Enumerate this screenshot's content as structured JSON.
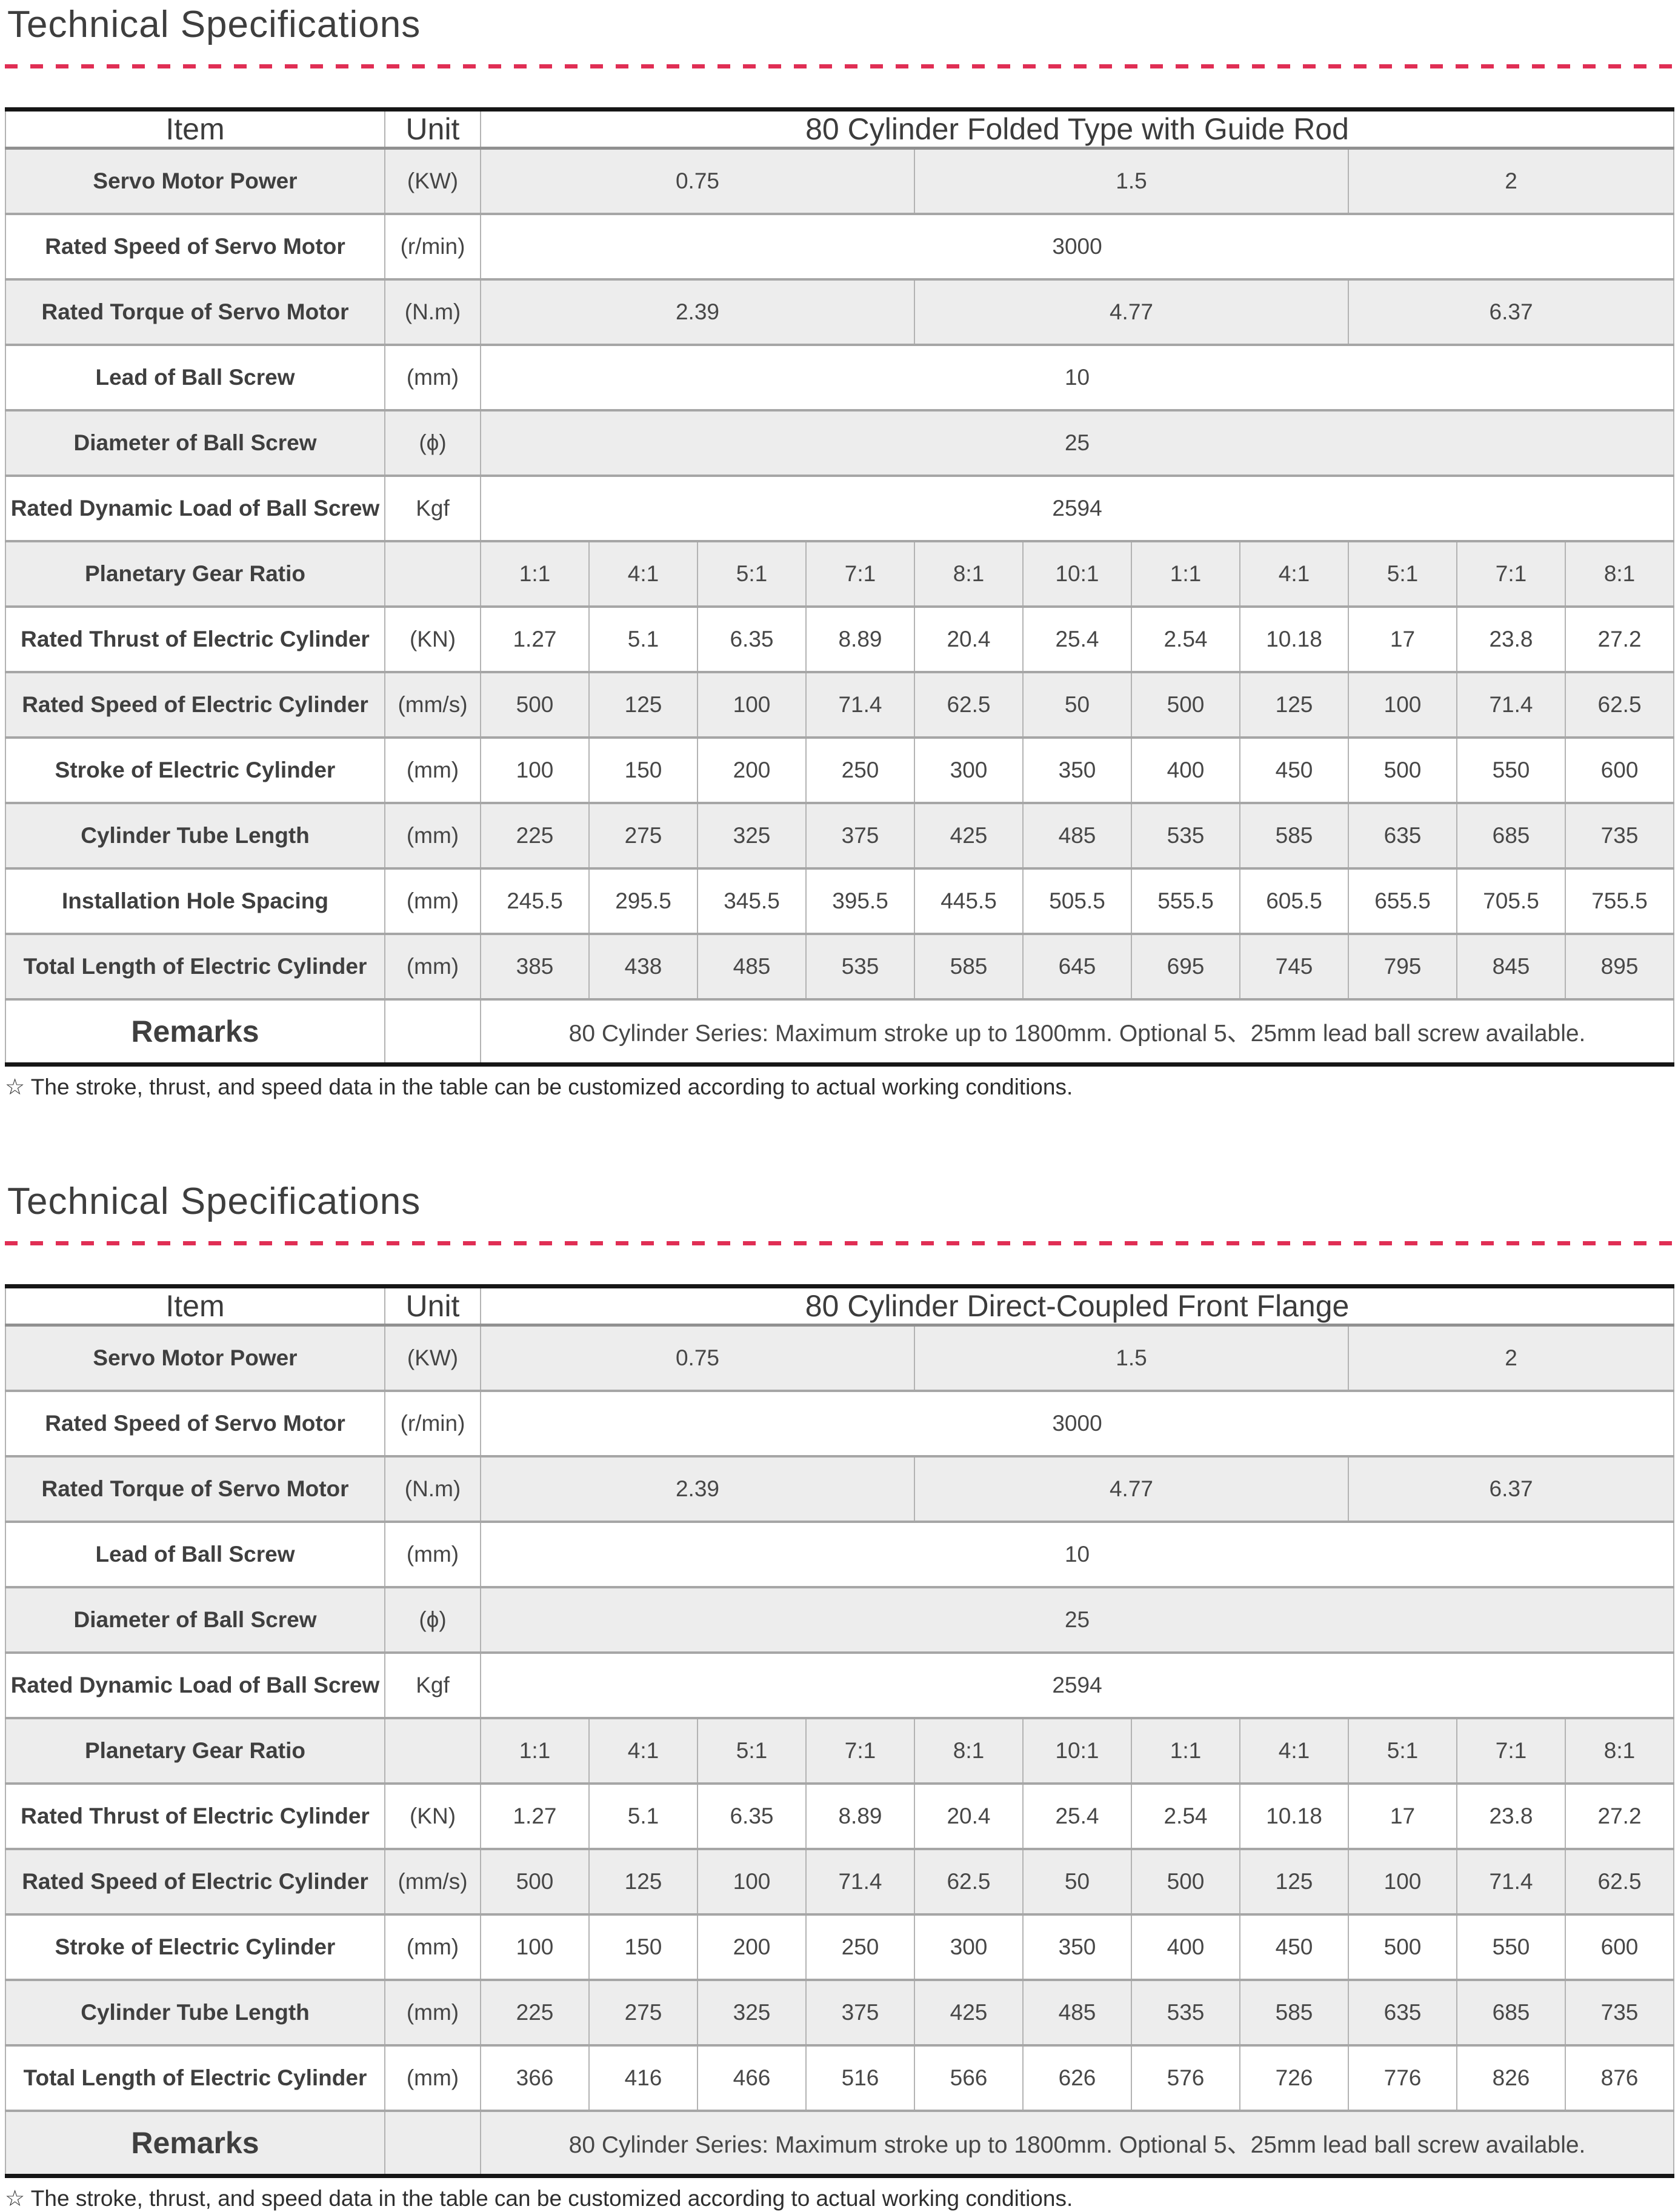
{
  "colors": {
    "dash_accent": "#e02e54",
    "row_shade": "#ededed",
    "table_frame": "#161616",
    "grid_line": "#a6a6a6"
  },
  "sections": [
    {
      "title": "Technical Specifications",
      "footnote": "☆ The stroke, thrust, and speed data in the table can be customized according to actual working conditions.",
      "table": {
        "header": {
          "item": "Item",
          "unit": "Unit",
          "span": "80 Cylinder Folded Type with Guide Rod"
        },
        "rows": [
          {
            "label": "Servo Motor Power",
            "unit": "(KW)",
            "shaded": true,
            "cells": [
              {
                "t": "0.75",
                "s": 4
              },
              {
                "t": "1.5",
                "s": 4
              },
              {
                "t": "2",
                "s": 3
              }
            ]
          },
          {
            "label": "Rated Speed of Servo Motor",
            "unit": "(r/min)",
            "shaded": false,
            "cells": [
              {
                "t": "3000",
                "s": 11
              }
            ]
          },
          {
            "label": "Rated Torque of Servo Motor",
            "unit": "(N.m)",
            "shaded": true,
            "cells": [
              {
                "t": "2.39",
                "s": 4
              },
              {
                "t": "4.77",
                "s": 4
              },
              {
                "t": "6.37",
                "s": 3
              }
            ]
          },
          {
            "label": "Lead of Ball Screw",
            "unit": "(mm)",
            "shaded": false,
            "cells": [
              {
                "t": "10",
                "s": 11
              }
            ]
          },
          {
            "label": "Diameter of Ball Screw",
            "unit": "(ϕ)",
            "shaded": true,
            "cells": [
              {
                "t": "25",
                "s": 11
              }
            ]
          },
          {
            "label": "Rated Dynamic Load of Ball Screw",
            "unit": "Kgf",
            "shaded": false,
            "cells": [
              {
                "t": "2594",
                "s": 11
              }
            ]
          },
          {
            "label": "Planetary Gear Ratio",
            "unit": "",
            "shaded": true,
            "cells": [
              {
                "t": "1:1",
                "s": 1
              },
              {
                "t": "4:1",
                "s": 1
              },
              {
                "t": "5:1",
                "s": 1
              },
              {
                "t": "7:1",
                "s": 1
              },
              {
                "t": "8:1",
                "s": 1
              },
              {
                "t": "10:1",
                "s": 1
              },
              {
                "t": "1:1",
                "s": 1
              },
              {
                "t": "4:1",
                "s": 1
              },
              {
                "t": "5:1",
                "s": 1
              },
              {
                "t": "7:1",
                "s": 1
              },
              {
                "t": "8:1",
                "s": 1
              }
            ]
          },
          {
            "label": "Rated Thrust of Electric Cylinder",
            "unit": "(KN)",
            "shaded": false,
            "cells": [
              {
                "t": "1.27",
                "s": 1
              },
              {
                "t": "5.1",
                "s": 1
              },
              {
                "t": "6.35",
                "s": 1
              },
              {
                "t": "8.89",
                "s": 1
              },
              {
                "t": "20.4",
                "s": 1
              },
              {
                "t": "25.4",
                "s": 1
              },
              {
                "t": "2.54",
                "s": 1
              },
              {
                "t": "10.18",
                "s": 1
              },
              {
                "t": "17",
                "s": 1
              },
              {
                "t": "23.8",
                "s": 1
              },
              {
                "t": "27.2",
                "s": 1
              }
            ]
          },
          {
            "label": "Rated Speed of Electric Cylinder",
            "unit": "(mm/s)",
            "shaded": true,
            "cells": [
              {
                "t": "500",
                "s": 1
              },
              {
                "t": "125",
                "s": 1
              },
              {
                "t": "100",
                "s": 1
              },
              {
                "t": "71.4",
                "s": 1
              },
              {
                "t": "62.5",
                "s": 1
              },
              {
                "t": "50",
                "s": 1
              },
              {
                "t": "500",
                "s": 1
              },
              {
                "t": "125",
                "s": 1
              },
              {
                "t": "100",
                "s": 1
              },
              {
                "t": "71.4",
                "s": 1
              },
              {
                "t": "62.5",
                "s": 1
              }
            ]
          },
          {
            "label": "Stroke of Electric Cylinder",
            "unit": "(mm)",
            "shaded": false,
            "cells": [
              {
                "t": "100",
                "s": 1
              },
              {
                "t": "150",
                "s": 1
              },
              {
                "t": "200",
                "s": 1
              },
              {
                "t": "250",
                "s": 1
              },
              {
                "t": "300",
                "s": 1
              },
              {
                "t": "350",
                "s": 1
              },
              {
                "t": "400",
                "s": 1
              },
              {
                "t": "450",
                "s": 1
              },
              {
                "t": "500",
                "s": 1
              },
              {
                "t": "550",
                "s": 1
              },
              {
                "t": "600",
                "s": 1
              }
            ]
          },
          {
            "label": "Cylinder Tube Length",
            "unit": "(mm)",
            "shaded": true,
            "cells": [
              {
                "t": "225",
                "s": 1
              },
              {
                "t": "275",
                "s": 1
              },
              {
                "t": "325",
                "s": 1
              },
              {
                "t": "375",
                "s": 1
              },
              {
                "t": "425",
                "s": 1
              },
              {
                "t": "485",
                "s": 1
              },
              {
                "t": "535",
                "s": 1
              },
              {
                "t": "585",
                "s": 1
              },
              {
                "t": "635",
                "s": 1
              },
              {
                "t": "685",
                "s": 1
              },
              {
                "t": "735",
                "s": 1
              }
            ]
          },
          {
            "label": "Installation Hole Spacing",
            "unit": "(mm)",
            "shaded": false,
            "cells": [
              {
                "t": "245.5",
                "s": 1
              },
              {
                "t": "295.5",
                "s": 1
              },
              {
                "t": "345.5",
                "s": 1
              },
              {
                "t": "395.5",
                "s": 1
              },
              {
                "t": "445.5",
                "s": 1
              },
              {
                "t": "505.5",
                "s": 1
              },
              {
                "t": "555.5",
                "s": 1
              },
              {
                "t": "605.5",
                "s": 1
              },
              {
                "t": "655.5",
                "s": 1
              },
              {
                "t": "705.5",
                "s": 1
              },
              {
                "t": "755.5",
                "s": 1
              }
            ]
          },
          {
            "label": "Total Length of Electric Cylinder",
            "unit": "(mm)",
            "shaded": true,
            "cells": [
              {
                "t": "385",
                "s": 1
              },
              {
                "t": "438",
                "s": 1
              },
              {
                "t": "485",
                "s": 1
              },
              {
                "t": "535",
                "s": 1
              },
              {
                "t": "585",
                "s": 1
              },
              {
                "t": "645",
                "s": 1
              },
              {
                "t": "695",
                "s": 1
              },
              {
                "t": "745",
                "s": 1
              },
              {
                "t": "795",
                "s": 1
              },
              {
                "t": "845",
                "s": 1
              },
              {
                "t": "895",
                "s": 1
              }
            ]
          },
          {
            "label": "Remarks",
            "unit": "",
            "shaded": false,
            "remarks": true,
            "cells": [
              {
                "t": "80 Cylinder Series: Maximum stroke up to 1800mm. Optional 5、25mm lead ball screw available.",
                "s": 11
              }
            ]
          }
        ]
      }
    },
    {
      "title": "Technical Specifications",
      "footnote": "☆ The stroke, thrust, and speed data in the table can be customized according to actual working conditions.",
      "table": {
        "header": {
          "item": "Item",
          "unit": "Unit",
          "span": "80  Cylinder Direct-Coupled Front Flange"
        },
        "rows": [
          {
            "label": "Servo Motor Power",
            "unit": "(KW)",
            "shaded": true,
            "cells": [
              {
                "t": "0.75",
                "s": 4
              },
              {
                "t": "1.5",
                "s": 4
              },
              {
                "t": "2",
                "s": 3
              }
            ]
          },
          {
            "label": "Rated Speed of Servo Motor",
            "unit": "(r/min)",
            "shaded": false,
            "cells": [
              {
                "t": "3000",
                "s": 11
              }
            ]
          },
          {
            "label": "Rated Torque of Servo Motor",
            "unit": "(N.m)",
            "shaded": true,
            "cells": [
              {
                "t": "2.39",
                "s": 4
              },
              {
                "t": "4.77",
                "s": 4
              },
              {
                "t": "6.37",
                "s": 3
              }
            ]
          },
          {
            "label": "Lead of Ball Screw",
            "unit": "(mm)",
            "shaded": false,
            "cells": [
              {
                "t": "10",
                "s": 11
              }
            ]
          },
          {
            "label": "Diameter of Ball Screw",
            "unit": "(ϕ)",
            "shaded": true,
            "cells": [
              {
                "t": "25",
                "s": 11
              }
            ]
          },
          {
            "label": "Rated Dynamic Load of Ball Screw",
            "unit": "Kgf",
            "shaded": false,
            "cells": [
              {
                "t": "2594",
                "s": 11
              }
            ]
          },
          {
            "label": "Planetary Gear Ratio",
            "unit": "",
            "shaded": true,
            "cells": [
              {
                "t": "1:1",
                "s": 1
              },
              {
                "t": "4:1",
                "s": 1
              },
              {
                "t": "5:1",
                "s": 1
              },
              {
                "t": "7:1",
                "s": 1
              },
              {
                "t": "8:1",
                "s": 1
              },
              {
                "t": "10:1",
                "s": 1
              },
              {
                "t": "1:1",
                "s": 1
              },
              {
                "t": "4:1",
                "s": 1
              },
              {
                "t": "5:1",
                "s": 1
              },
              {
                "t": "7:1",
                "s": 1
              },
              {
                "t": "8:1",
                "s": 1
              }
            ]
          },
          {
            "label": "Rated Thrust of Electric Cylinder",
            "unit": "(KN)",
            "shaded": false,
            "cells": [
              {
                "t": "1.27",
                "s": 1
              },
              {
                "t": "5.1",
                "s": 1
              },
              {
                "t": "6.35",
                "s": 1
              },
              {
                "t": "8.89",
                "s": 1
              },
              {
                "t": "20.4",
                "s": 1
              },
              {
                "t": "25.4",
                "s": 1
              },
              {
                "t": "2.54",
                "s": 1
              },
              {
                "t": "10.18",
                "s": 1
              },
              {
                "t": "17",
                "s": 1
              },
              {
                "t": "23.8",
                "s": 1
              },
              {
                "t": "27.2",
                "s": 1
              }
            ]
          },
          {
            "label": "Rated Speed of Electric Cylinder",
            "unit": "(mm/s)",
            "shaded": true,
            "cells": [
              {
                "t": "500",
                "s": 1
              },
              {
                "t": "125",
                "s": 1
              },
              {
                "t": "100",
                "s": 1
              },
              {
                "t": "71.4",
                "s": 1
              },
              {
                "t": "62.5",
                "s": 1
              },
              {
                "t": "50",
                "s": 1
              },
              {
                "t": "500",
                "s": 1
              },
              {
                "t": "125",
                "s": 1
              },
              {
                "t": "100",
                "s": 1
              },
              {
                "t": "71.4",
                "s": 1
              },
              {
                "t": "62.5",
                "s": 1
              }
            ]
          },
          {
            "label": "Stroke of Electric Cylinder",
            "unit": "(mm)",
            "shaded": false,
            "cells": [
              {
                "t": "100",
                "s": 1
              },
              {
                "t": "150",
                "s": 1
              },
              {
                "t": "200",
                "s": 1
              },
              {
                "t": "250",
                "s": 1
              },
              {
                "t": "300",
                "s": 1
              },
              {
                "t": "350",
                "s": 1
              },
              {
                "t": "400",
                "s": 1
              },
              {
                "t": "450",
                "s": 1
              },
              {
                "t": "500",
                "s": 1
              },
              {
                "t": "550",
                "s": 1
              },
              {
                "t": "600",
                "s": 1
              }
            ]
          },
          {
            "label": "Cylinder Tube Length",
            "unit": "(mm)",
            "shaded": true,
            "cells": [
              {
                "t": "225",
                "s": 1
              },
              {
                "t": "275",
                "s": 1
              },
              {
                "t": "325",
                "s": 1
              },
              {
                "t": "375",
                "s": 1
              },
              {
                "t": "425",
                "s": 1
              },
              {
                "t": "485",
                "s": 1
              },
              {
                "t": "535",
                "s": 1
              },
              {
                "t": "585",
                "s": 1
              },
              {
                "t": "635",
                "s": 1
              },
              {
                "t": "685",
                "s": 1
              },
              {
                "t": "735",
                "s": 1
              }
            ]
          },
          {
            "label": "Total Length of Electric Cylinder",
            "unit": "(mm)",
            "shaded": false,
            "cells": [
              {
                "t": "366",
                "s": 1
              },
              {
                "t": "416",
                "s": 1
              },
              {
                "t": "466",
                "s": 1
              },
              {
                "t": "516",
                "s": 1
              },
              {
                "t": "566",
                "s": 1
              },
              {
                "t": "626",
                "s": 1
              },
              {
                "t": "576",
                "s": 1
              },
              {
                "t": "726",
                "s": 1
              },
              {
                "t": "776",
                "s": 1
              },
              {
                "t": "826",
                "s": 1
              },
              {
                "t": "876",
                "s": 1
              }
            ]
          },
          {
            "label": "Remarks",
            "unit": "",
            "shaded": true,
            "remarks": true,
            "cells": [
              {
                "t": "80 Cylinder Series: Maximum stroke up to 1800mm. Optional 5、25mm lead ball screw available.",
                "s": 11
              }
            ]
          }
        ]
      }
    }
  ]
}
